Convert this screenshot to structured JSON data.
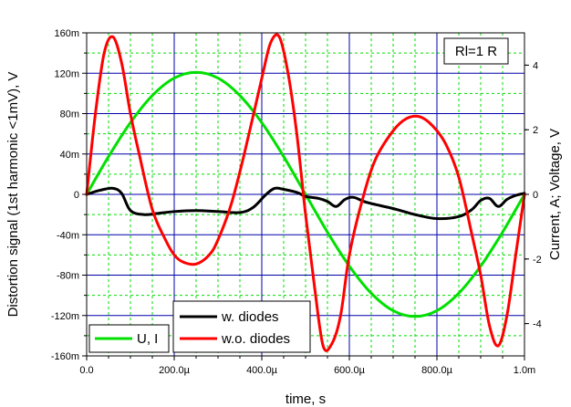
{
  "chart_data": {
    "type": "line",
    "xlabel": "time, s",
    "ylabel_left": "Distortion signal (1st harmonic <1mV), V",
    "ylabel_right": "Current, A; Voltage, V",
    "xlim": [
      0,
      0.001
    ],
    "ylim_left": [
      -0.16,
      0.16
    ],
    "ylim_right": [
      -5,
      5
    ],
    "grid": true,
    "x_ticks": [
      {
        "value": 0,
        "label": "0.0"
      },
      {
        "value": 0.0002,
        "label": "200.0µ"
      },
      {
        "value": 0.0004,
        "label": "400.0µ"
      },
      {
        "value": 0.0006,
        "label": "600.0µ"
      },
      {
        "value": 0.0008,
        "label": "800.0µ"
      },
      {
        "value": 0.001,
        "label": "1.0m"
      }
    ],
    "left_ticks": [
      {
        "value": 0.16,
        "label": "160m"
      },
      {
        "value": 0.12,
        "label": "120m"
      },
      {
        "value": 0.08,
        "label": "80m"
      },
      {
        "value": 0.04,
        "label": "40m"
      },
      {
        "value": 0,
        "label": "0"
      },
      {
        "value": -0.04,
        "label": "-40m"
      },
      {
        "value": -0.08,
        "label": "-80m"
      },
      {
        "value": -0.12,
        "label": "-120m"
      },
      {
        "value": -0.16,
        "label": "-160m"
      }
    ],
    "right_ticks": [
      {
        "value": 4,
        "label": "4"
      },
      {
        "value": 2,
        "label": "2"
      },
      {
        "value": 0,
        "label": "0"
      },
      {
        "value": -2,
        "label": "-2"
      },
      {
        "value": -4,
        "label": "-4"
      }
    ],
    "annotation": "Rl=1 R",
    "series": [
      {
        "name": "U, I",
        "axis": "right",
        "color": "#00e000",
        "x": [
          0,
          5e-05,
          0.0001,
          0.00015,
          0.0002,
          0.00025,
          0.0003,
          0.00035,
          0.0004,
          0.00045,
          0.0005,
          0.00055,
          0.0006,
          0.00065,
          0.0007,
          0.00075,
          0.0008,
          0.00085,
          0.0009,
          0.00095,
          0.001
        ],
        "y": [
          0,
          1.17,
          2.22,
          3.06,
          3.6,
          3.78,
          3.6,
          3.06,
          2.22,
          1.17,
          0,
          -1.17,
          -2.22,
          -3.06,
          -3.6,
          -3.78,
          -3.6,
          -3.06,
          -2.22,
          -1.17,
          0
        ]
      },
      {
        "name": "w. diodes",
        "axis": "left",
        "color": "#000000",
        "x": [
          0,
          3e-05,
          6e-05,
          8e-05,
          0.0001,
          0.00013,
          0.00016,
          0.0002,
          0.00025,
          0.0003,
          0.00035,
          0.00038,
          0.00041,
          0.00043,
          0.00045,
          0.00048,
          0.0005,
          0.00053,
          0.00055,
          0.00057,
          0.00059,
          0.00061,
          0.00064,
          0.0007,
          0.00075,
          0.0008,
          0.00085,
          0.00088,
          0.0009,
          0.00092,
          0.00094,
          0.00096,
          0.00098,
          0.001
        ],
        "y": [
          0,
          0.004,
          0.006,
          0.001,
          -0.016,
          -0.02,
          -0.019,
          -0.017,
          -0.016,
          -0.017,
          -0.018,
          -0.013,
          0,
          0.006,
          0.005,
          0.002,
          -0.002,
          -0.004,
          -0.007,
          -0.012,
          -0.005,
          -0.003,
          -0.008,
          -0.014,
          -0.02,
          -0.024,
          -0.022,
          -0.015,
          -0.006,
          -0.004,
          -0.012,
          -0.005,
          -0.001,
          0.001
        ]
      },
      {
        "name": "w.o. diodes",
        "axis": "left",
        "color": "#ff0000",
        "x": [
          0,
          2e-05,
          4e-05,
          6e-05,
          8e-05,
          0.0001,
          0.00012,
          0.00015,
          0.00018,
          0.0002,
          0.00022,
          0.00025,
          0.00028,
          0.0003,
          0.00033,
          0.00036,
          0.0004,
          0.00042,
          0.00044,
          0.00046,
          0.00048,
          0.0005,
          0.00052,
          0.00054,
          0.00056,
          0.00058,
          0.0006,
          0.00063,
          0.00066,
          0.0007,
          0.00073,
          0.00076,
          0.00079,
          0.00082,
          0.00085,
          0.00088,
          0.0009,
          0.00092,
          0.00094,
          0.00096,
          0.00098,
          0.001
        ],
        "y": [
          0,
          0.08,
          0.14,
          0.156,
          0.13,
          0.08,
          0.04,
          -0.015,
          -0.045,
          -0.06,
          -0.067,
          -0.069,
          -0.06,
          -0.045,
          -0.01,
          0.04,
          0.115,
          0.15,
          0.156,
          0.12,
          0.06,
          -0.02,
          -0.09,
          -0.15,
          -0.148,
          -0.12,
          -0.06,
          -0.005,
          0.035,
          0.063,
          0.075,
          0.077,
          0.068,
          0.05,
          0.017,
          -0.04,
          -0.08,
          -0.13,
          -0.15,
          -0.12,
          -0.06,
          0
        ]
      }
    ]
  }
}
